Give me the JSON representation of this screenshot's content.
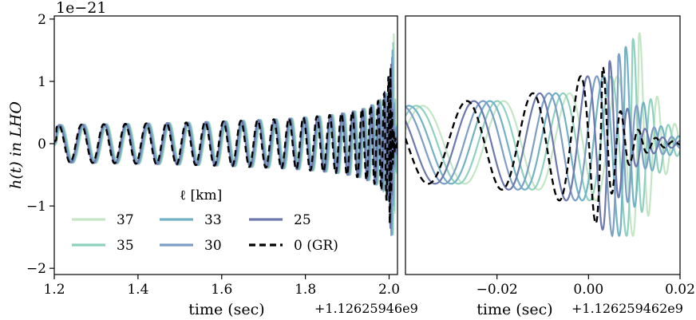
{
  "chart_data": [
    {
      "type": "line",
      "panel": "left",
      "ylabel": "h(t) in LHO",
      "xlabel": "time (sec)",
      "x_offset_label": "+1.12625946e9",
      "y_scale_label": "1e−21",
      "xlim": [
        1.2,
        2.02
      ],
      "ylim": [
        -2.1,
        2.05
      ],
      "x_ticks": [
        1.2,
        1.4,
        1.6,
        1.8,
        2.0
      ],
      "x_tick_labels": [
        "1.2",
        "1.4",
        "1.6",
        "1.8",
        "2.0"
      ],
      "y_ticks": [
        -2,
        -1,
        0,
        1,
        2
      ],
      "y_tick_labels": [
        "−2",
        "−1",
        "0",
        "1",
        "2"
      ],
      "grid": false,
      "legend": {
        "title": "ℓ [km]",
        "placement": "lower-left",
        "entries": [
          "37",
          "35",
          "33",
          "30",
          "25",
          "0 (GR)"
        ]
      },
      "waveform": {
        "t_merger": 2.0,
        "early_amplitude": 0.3,
        "peak_amplitude_GR": 1.3,
        "early_frequency_hz": 18
      },
      "series": [
        {
          "name": "37",
          "color": "#c4e6c4",
          "peak": 1.85,
          "shift": 0.008,
          "dash": false
        },
        {
          "name": "35",
          "color": "#8fd1bf",
          "peak": 1.75,
          "shift": 0.0066,
          "dash": false
        },
        {
          "name": "33",
          "color": "#71b2c4",
          "peak": 1.62,
          "shift": 0.005,
          "dash": false
        },
        {
          "name": "30",
          "color": "#7d9ec5",
          "peak": 1.5,
          "shift": 0.0035,
          "dash": false
        },
        {
          "name": "25",
          "color": "#6d78ad",
          "peak": 1.38,
          "shift": 0.0015,
          "dash": false
        },
        {
          "name": "0 (GR)",
          "color": "#000000",
          "peak": 1.28,
          "shift": 0.0,
          "dash": true
        }
      ]
    },
    {
      "type": "line",
      "panel": "right",
      "xlabel": "time (sec)",
      "x_offset_label": "+1.126259462e9",
      "xlim": [
        -0.04,
        0.02
      ],
      "ylim": [
        -2.1,
        2.05
      ],
      "x_ticks": [
        -0.02,
        0.0,
        0.02
      ],
      "x_tick_labels": [
        "−0.02",
        "0.00",
        "0.02"
      ],
      "grid": false,
      "series": [
        "37",
        "35",
        "33",
        "30",
        "25",
        "0 (GR)"
      ]
    }
  ]
}
